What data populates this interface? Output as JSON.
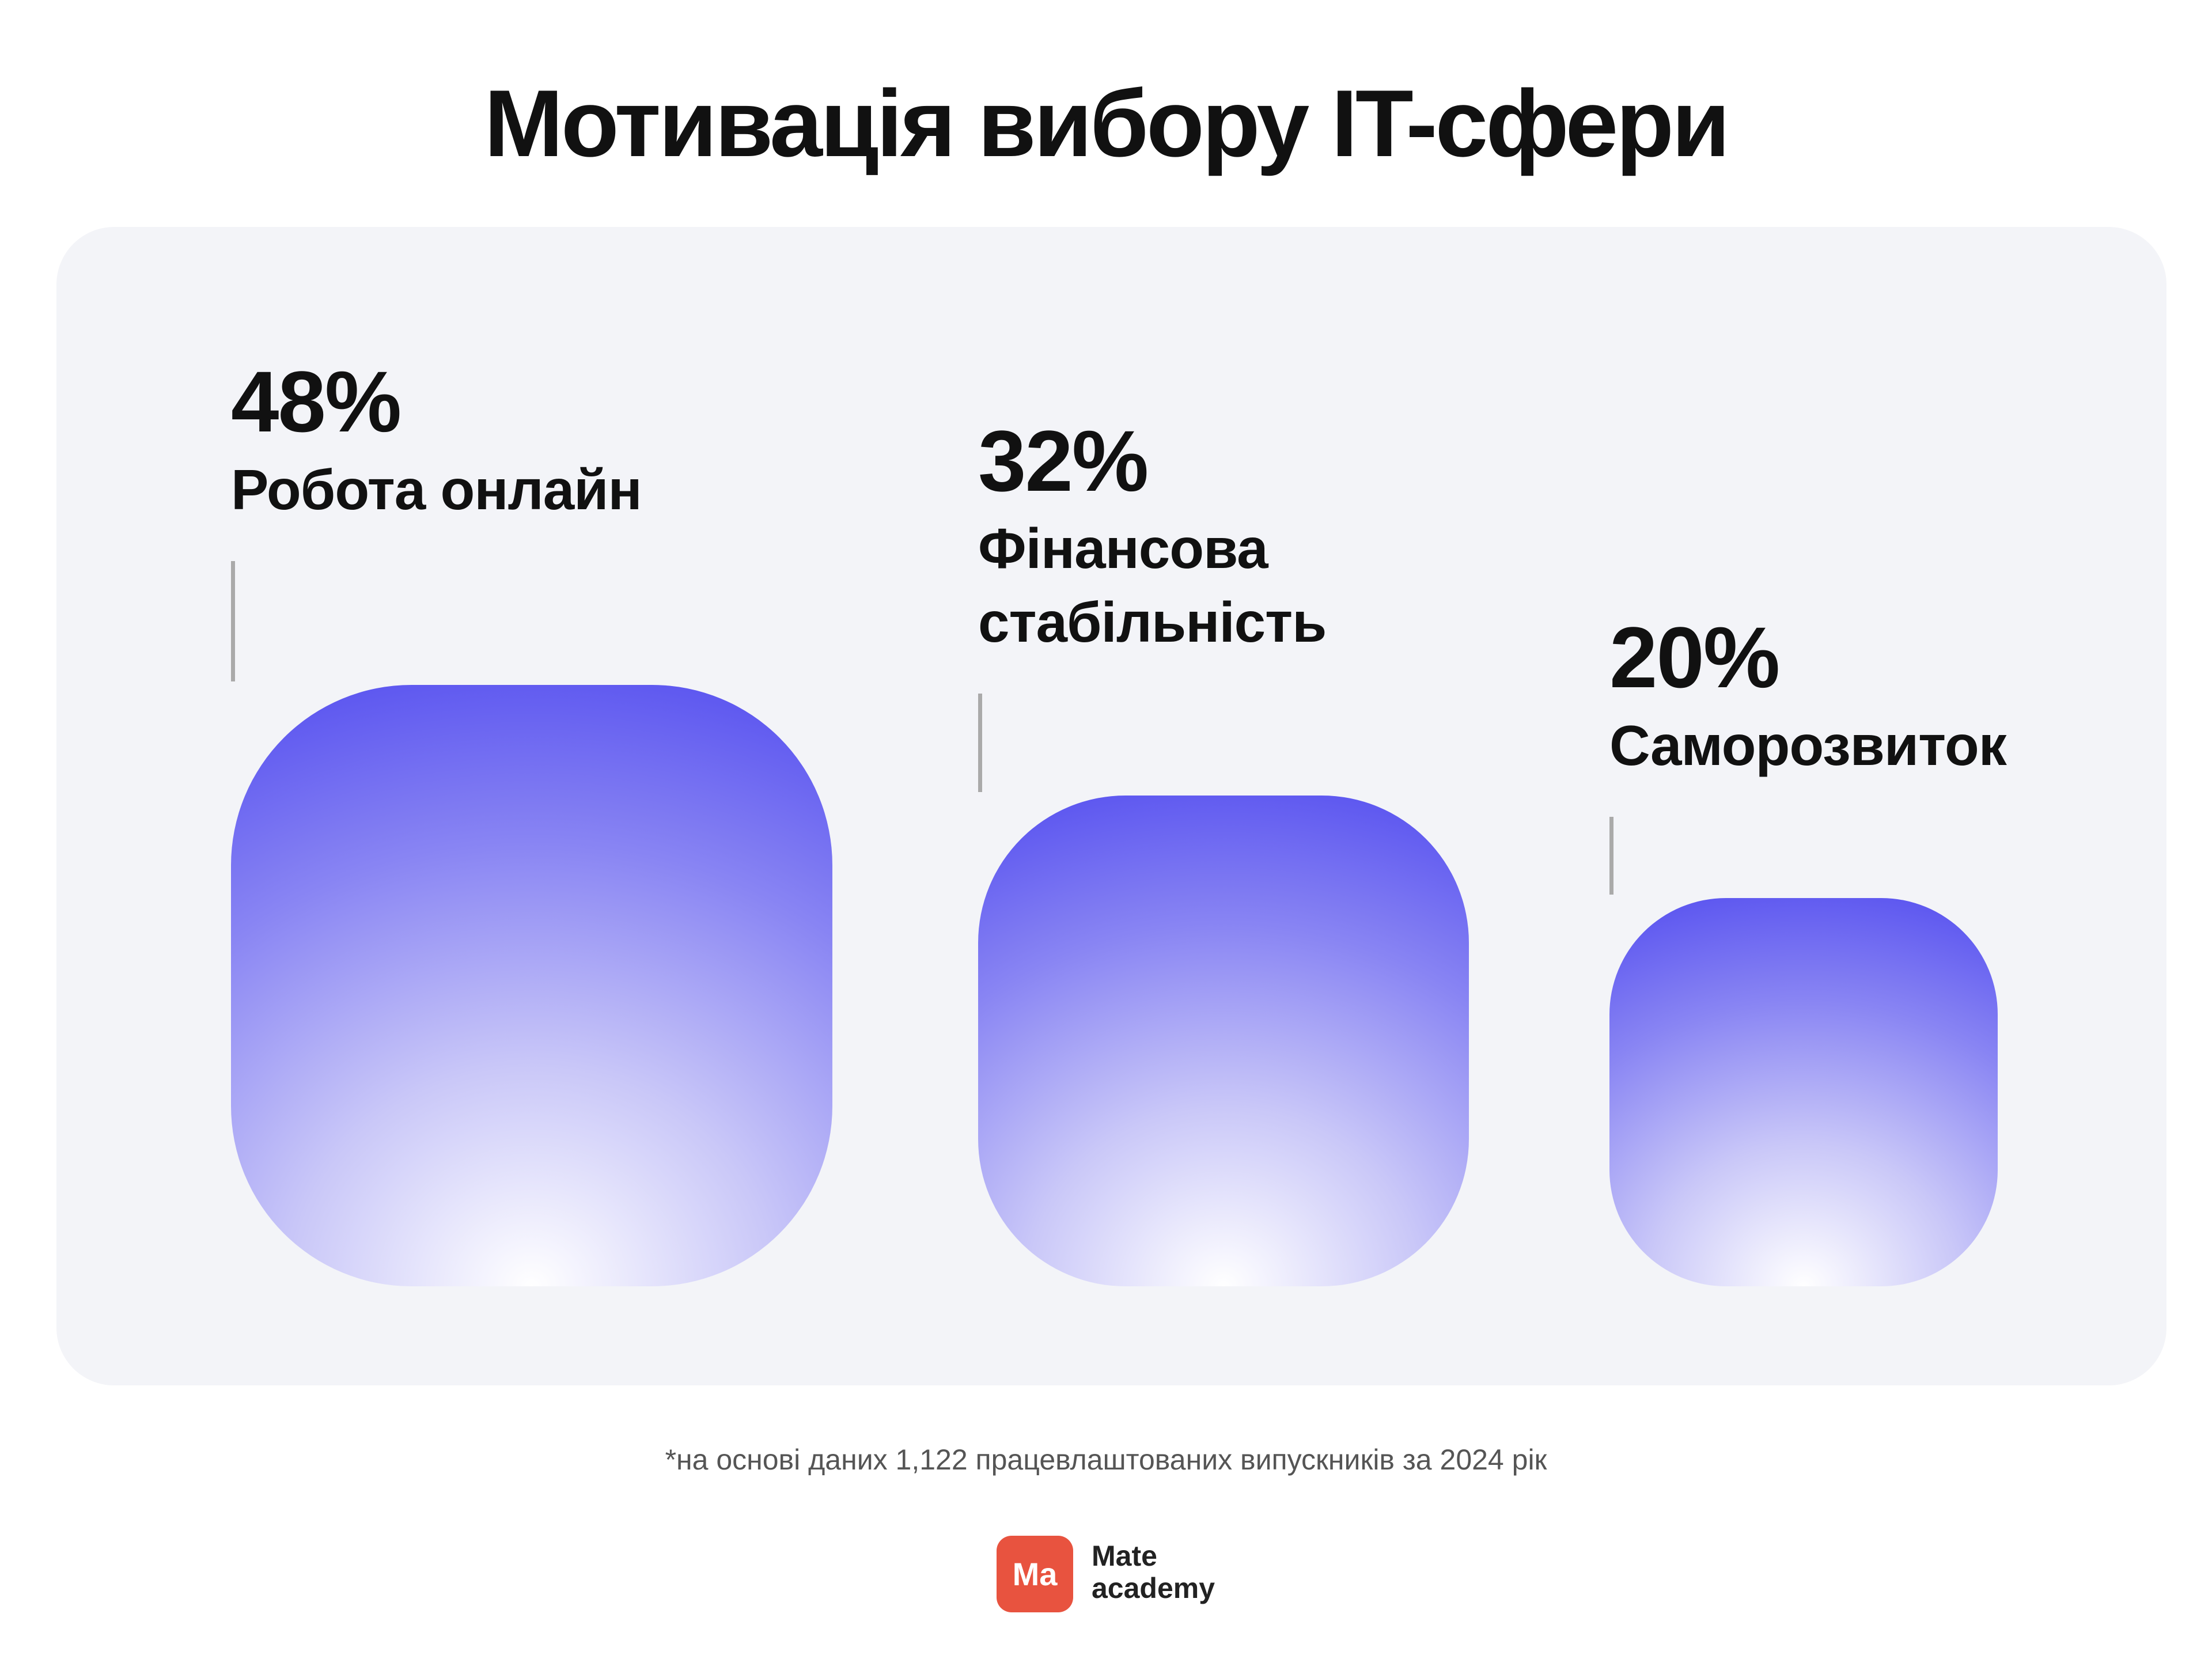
{
  "chart_data": {
    "type": "square",
    "title": "Мотивація вибору IT-сфери",
    "categories": [
      "Робота онлайн",
      "Фінансова стабільність",
      "Саморозвиток"
    ],
    "values": [
      48,
      32,
      20
    ],
    "value_labels": [
      "48%",
      "32%",
      "20%"
    ],
    "color": "#5a54f0"
  },
  "footnote": "*на основі даних 1,122 працевлаштованих випускників за 2024 рік",
  "logo": {
    "badge": "Ma",
    "line1": "Mate",
    "line2": "academy"
  }
}
